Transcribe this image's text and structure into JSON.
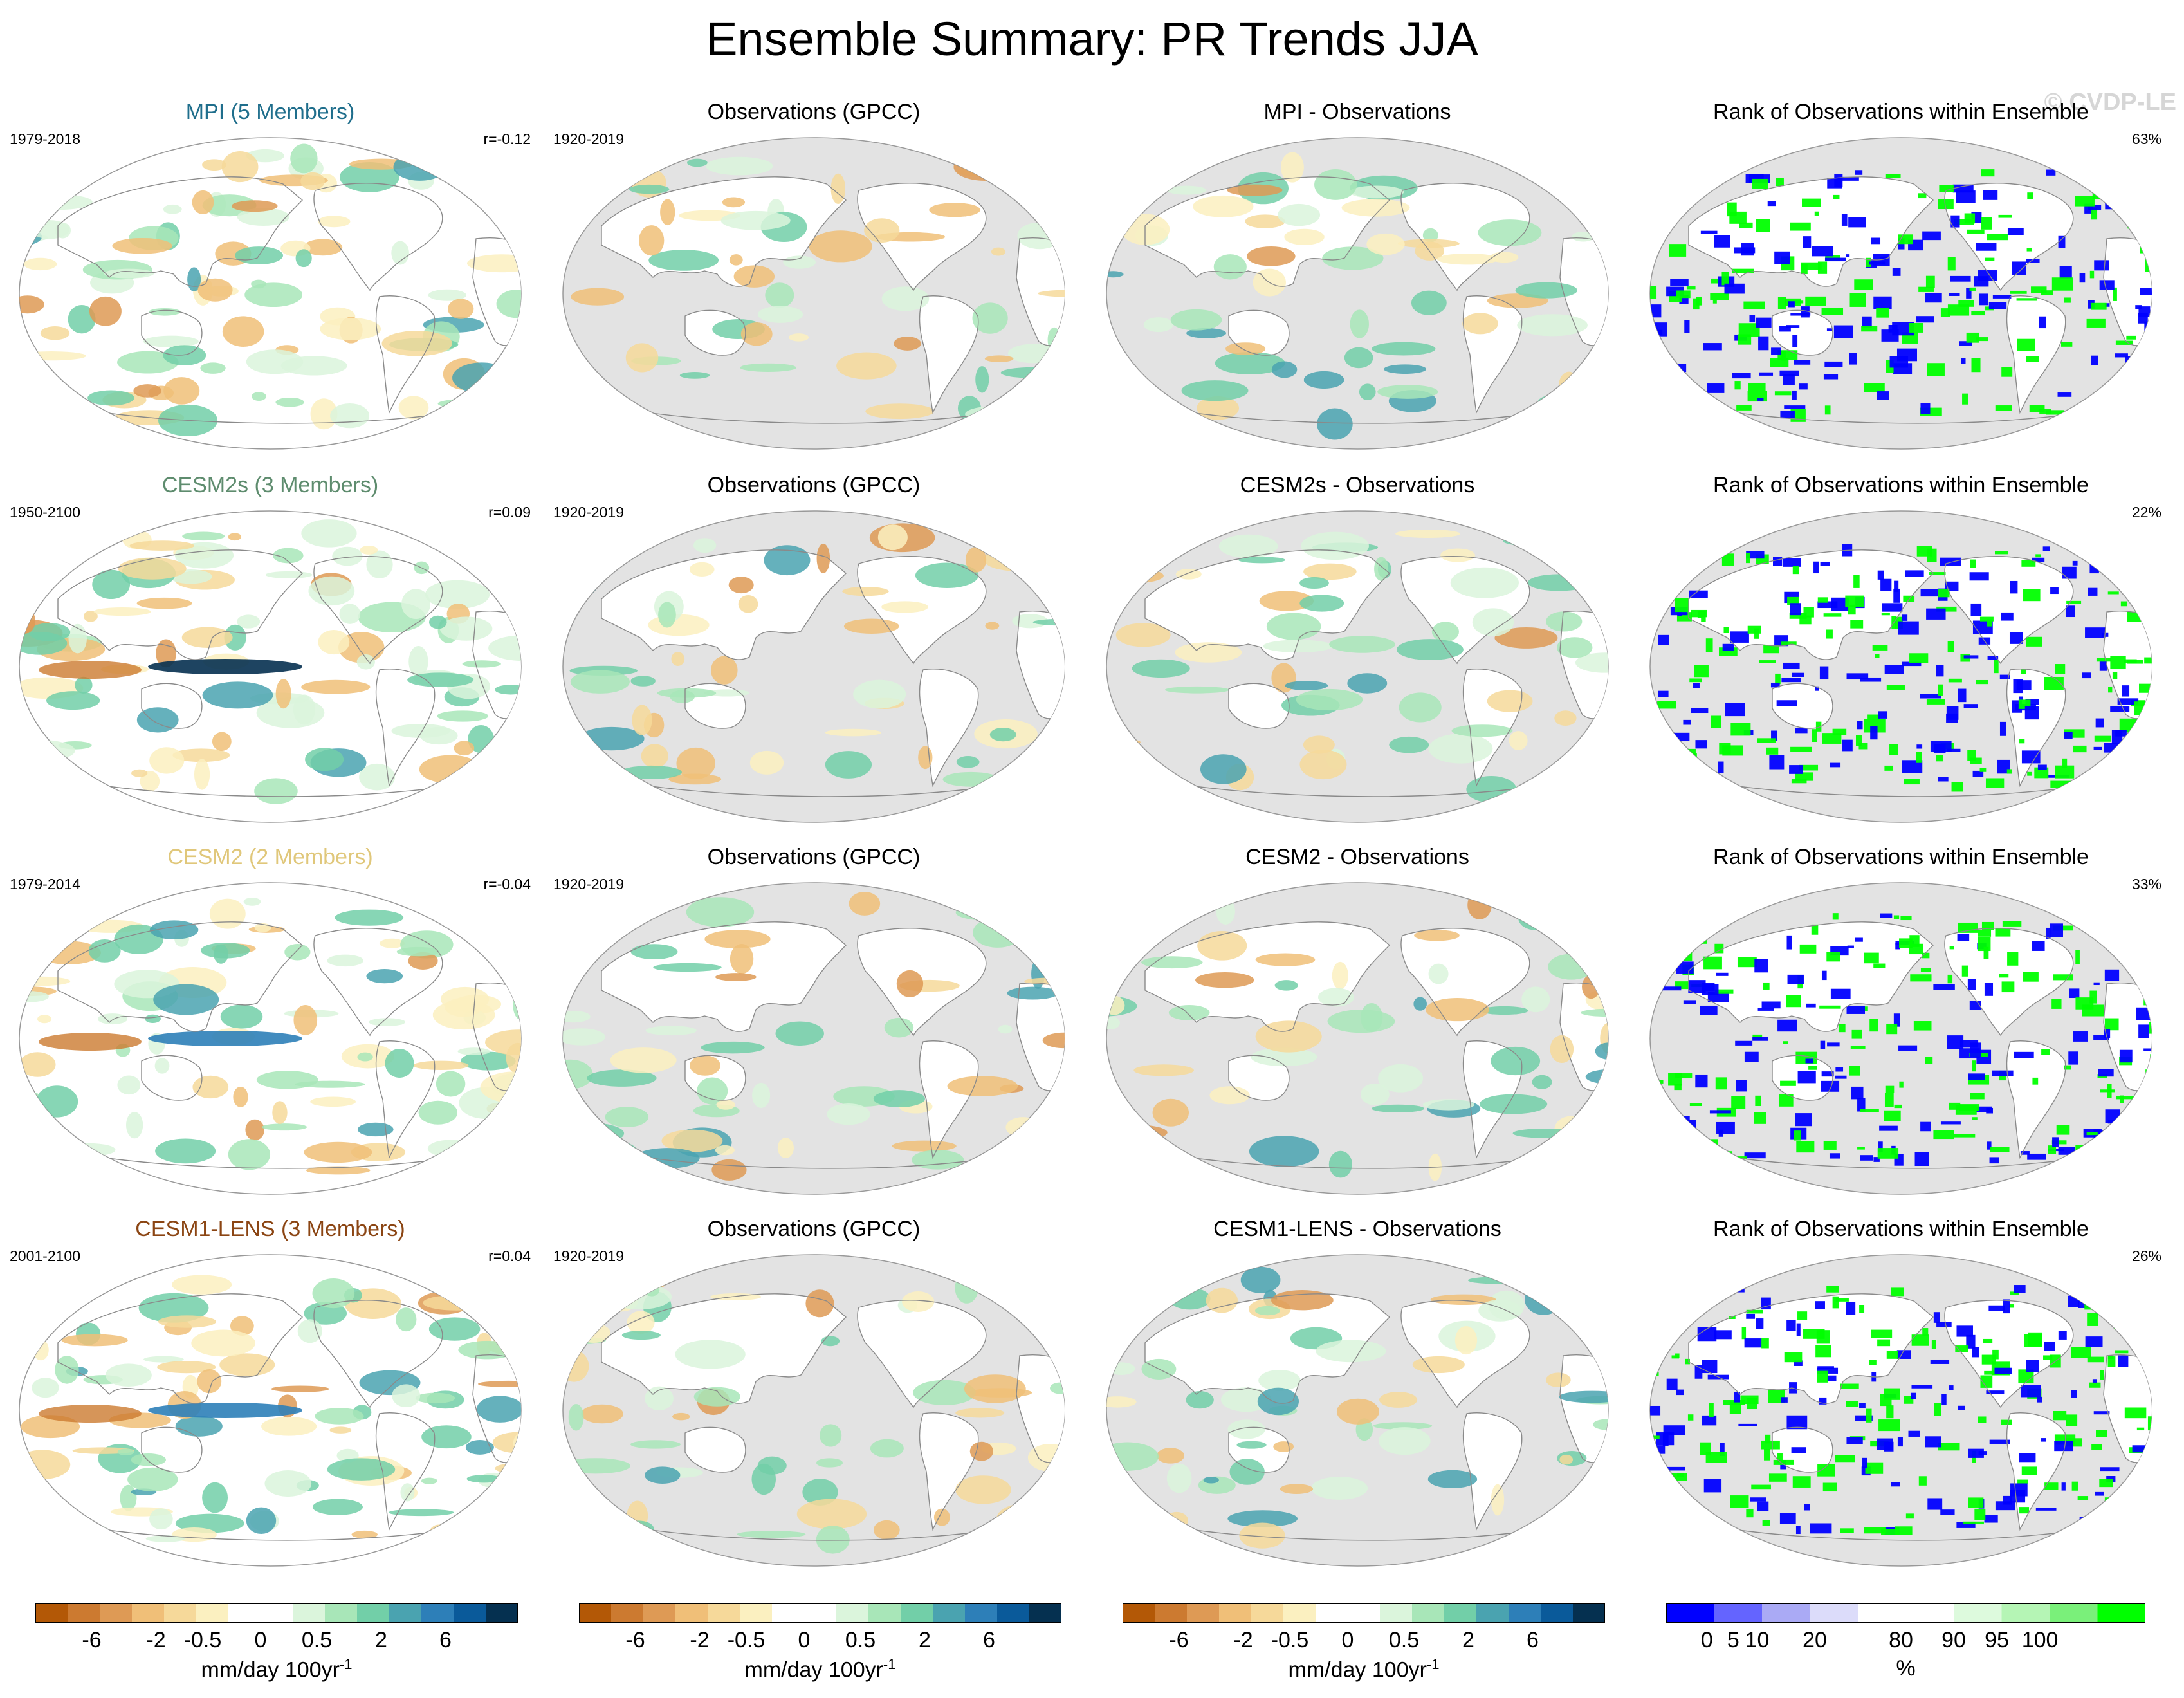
{
  "title": "Ensemble Summary: PR Trends JJA",
  "watermark": "© CVDP-LE",
  "rows": [
    {
      "model": {
        "title": "MPI (5 Members)",
        "title_color": "#1f6e8c",
        "period": "1979-2018",
        "r": "r=-0.12"
      },
      "obs": {
        "title": "Observations (GPCC)",
        "period": "1920-2019"
      },
      "diff": {
        "title": "MPI - Observations"
      },
      "rank": {
        "title": "Rank of Observations within Ensemble",
        "percent": "63%"
      }
    },
    {
      "model": {
        "title": "CESM2s (3 Members)",
        "title_color": "#5e8c6e",
        "period": "1950-2100",
        "r": "r=0.09"
      },
      "obs": {
        "title": "Observations (GPCC)",
        "period": "1920-2019"
      },
      "diff": {
        "title": "CESM2s - Observations"
      },
      "rank": {
        "title": "Rank of Observations within Ensemble",
        "percent": "22%"
      }
    },
    {
      "model": {
        "title": "CESM2 (2 Members)",
        "title_color": "#e0c77a",
        "period": "1979-2014",
        "r": "r=-0.04"
      },
      "obs": {
        "title": "Observations (GPCC)",
        "period": "1920-2019"
      },
      "diff": {
        "title": "CESM2 - Observations"
      },
      "rank": {
        "title": "Rank of Observations within Ensemble",
        "percent": "33%"
      }
    },
    {
      "model": {
        "title": "CESM1-LENS (3 Members)",
        "title_color": "#8b4513",
        "period": "2001-2100",
        "r": "r=0.04"
      },
      "obs": {
        "title": "Observations (GPCC)",
        "period": "1920-2019"
      },
      "diff": {
        "title": "CESM1-LENS - Observations"
      },
      "rank": {
        "title": "Rank of Observations within Ensemble",
        "percent": "26%"
      }
    }
  ],
  "trend_colorbar": {
    "colors": [
      "#b35806",
      "#cc7a30",
      "#de9a55",
      "#f0bf78",
      "#f6d99a",
      "#fbf0c0",
      "#ffffff",
      "#ffffff",
      "#dbf5dc",
      "#a8e6b8",
      "#72cfa8",
      "#4aa3b0",
      "#2d7fb8",
      "#0a5a9a",
      "#053050"
    ],
    "ticks": [
      "-6",
      "-2",
      "-0.5",
      "0",
      "0.5",
      "2",
      "6"
    ],
    "label": "mm/day 100yr",
    "label_sup": "-1"
  },
  "rank_colorbar": {
    "colors": [
      "#0000ff",
      "#6464ff",
      "#aaaaf5",
      "#dcdcfa",
      "#ffffff",
      "#ffffff",
      "#ddfadd",
      "#b5f5b5",
      "#7af07a",
      "#00ff00"
    ],
    "ticks": [
      "0",
      "5",
      "10",
      "20",
      "80",
      "90",
      "95",
      "100"
    ],
    "label": "%"
  }
}
